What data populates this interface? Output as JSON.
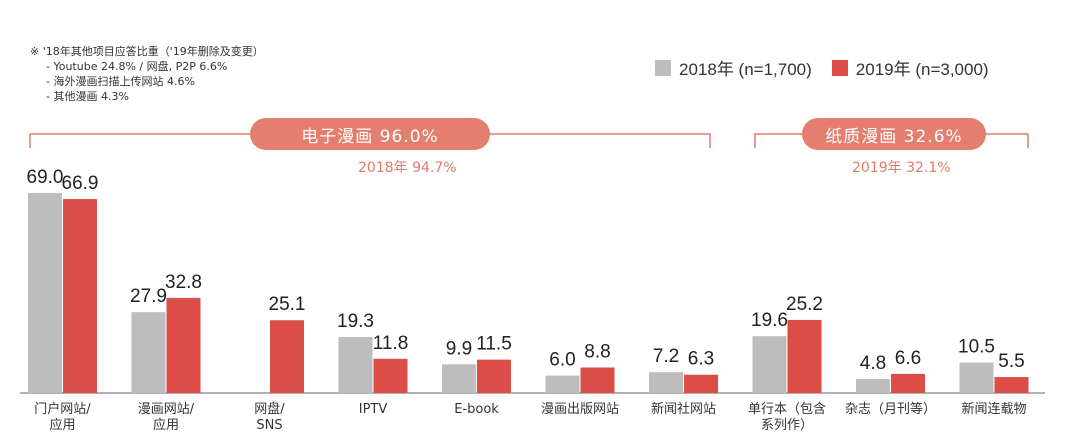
{
  "colors": {
    "y2018": "#bdbdbd",
    "y2019": "#dc4d47",
    "accent": "#e07a6a",
    "pill": "#e47f6f"
  },
  "note": {
    "title": "※ '18年其他项目应答比重（'19年删除及变更）",
    "lines": [
      "- Youtube 24.8% / 网盘, P2P 6.6%",
      "- 海外漫画扫描上传网站 4.6%",
      "- 其他漫画 4.3%"
    ]
  },
  "legend": {
    "y2018": "2018年 (n=1,700)",
    "y2019": "2019年 (n=3,000)"
  },
  "groups": {
    "digital": {
      "label": "电子漫画 96.0%",
      "note": "2018年 94.7%"
    },
    "paper": {
      "label": "纸质漫画 32.6%",
      "note": "2019年 32.1%"
    }
  },
  "chart_data": {
    "type": "bar",
    "categories": [
      "门户网站/应用",
      "漫画网站/应用",
      "网盘/SNS",
      "IPTV",
      "E-book",
      "漫画出版网站",
      "新闻社网站",
      "单行本（包含系列作）",
      "杂志（月刊等）",
      "新闻连载物"
    ],
    "series": [
      {
        "name": "2018年 (n=1,700)",
        "values": [
          69.0,
          27.9,
          null,
          19.3,
          9.9,
          6.0,
          7.2,
          19.6,
          4.8,
          10.5
        ]
      },
      {
        "name": "2019年 (n=3,000)",
        "values": [
          66.9,
          32.8,
          25.1,
          11.8,
          11.5,
          8.8,
          6.3,
          25.2,
          6.6,
          5.5
        ]
      }
    ],
    "ylim": [
      0,
      75
    ],
    "legend_position": "top-right",
    "grid": false
  }
}
